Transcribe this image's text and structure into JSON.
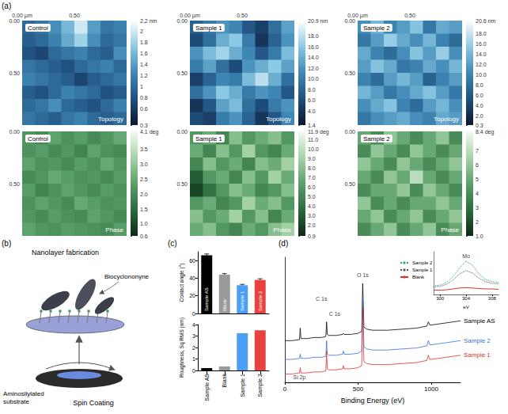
{
  "panel_labels": [
    "(a)",
    "(b)",
    "(c)",
    "(d)"
  ],
  "diagram": {
    "title": "Nanolayer fabrication",
    "molecule": "Biocyclononyne",
    "substrate": "Aminosilylated substrate",
    "process": "Spin Coating"
  },
  "chart_data": [
    {
      "type": "heatmap",
      "title": "Control",
      "subtitle": "Topology",
      "xlim": [
        0,
        1
      ],
      "ylim": [
        0,
        1
      ],
      "xticks": [
        {
          "value": 0,
          "label": "0.00 µm"
        },
        {
          "value": 0.5,
          "label": "0.50"
        }
      ],
      "yticks": [
        {
          "value": 0,
          "label": "0.00"
        },
        {
          "value": 0.5,
          "label": "0.50"
        }
      ],
      "cells": [
        [
          1.0,
          1.1,
          1.3,
          1.6,
          2.0,
          1.4,
          1.1,
          1.2
        ],
        [
          0.9,
          1.0,
          1.2,
          1.5,
          1.8,
          1.3,
          1.0,
          1.1
        ],
        [
          0.8,
          0.7,
          1.0,
          1.1,
          1.2,
          1.0,
          0.9,
          1.3
        ],
        [
          1.1,
          1.0,
          0.9,
          0.8,
          1.0,
          1.1,
          1.2,
          1.0
        ],
        [
          1.2,
          1.1,
          1.0,
          0.9,
          0.7,
          0.9,
          1.0,
          1.1
        ],
        [
          0.9,
          0.8,
          1.0,
          1.2,
          1.1,
          1.0,
          0.8,
          0.9
        ],
        [
          1.0,
          1.1,
          1.3,
          1.0,
          0.9,
          0.8,
          1.0,
          1.2
        ],
        [
          1.1,
          1.0,
          0.9,
          1.1,
          1.2,
          1.0,
          0.9,
          1.0
        ]
      ],
      "colorbar": {
        "range": [
          0.3,
          2.2
        ],
        "ticks": [
          {
            "value": 2.2,
            "label": "2.2 nm"
          },
          2,
          1.8,
          1.6,
          1.4,
          1.2,
          1,
          0.8,
          0.6,
          0.3
        ]
      }
    },
    {
      "type": "heatmap",
      "title": "Sample 1",
      "subtitle": "Topology",
      "xlim": [
        0,
        1
      ],
      "ylim": [
        0,
        1
      ],
      "xticks": [
        {
          "value": 0,
          "label": "0.00 µm"
        },
        {
          "value": 0.5,
          "label": "0.50"
        }
      ],
      "yticks": [
        {
          "value": 0,
          "label": "0.00"
        },
        {
          "value": 0.5,
          "label": "0.50"
        }
      ],
      "cells": [
        [
          8,
          10,
          12,
          11,
          7,
          5,
          9,
          13
        ],
        [
          6,
          9,
          14,
          16,
          10,
          4,
          8,
          12
        ],
        [
          12,
          15,
          17,
          14,
          11,
          7,
          10,
          15
        ],
        [
          10,
          13,
          9,
          6,
          12,
          14,
          16,
          13
        ],
        [
          5,
          8,
          11,
          10,
          15,
          18,
          14,
          9
        ],
        [
          9,
          12,
          16,
          14,
          10,
          12,
          11,
          7
        ],
        [
          4,
          7,
          13,
          15,
          9,
          6,
          10,
          12
        ],
        [
          6,
          5,
          10,
          12,
          8,
          4,
          7,
          11
        ]
      ],
      "colorbar": {
        "range": [
          1.4,
          20.9
        ],
        "ticks": [
          {
            "value": 20.9,
            "label": "20.9 nm"
          },
          {
            "value": 18,
            "label": "18.0"
          },
          {
            "value": 16,
            "label": "16.0"
          },
          {
            "value": 14,
            "label": "14.0"
          },
          {
            "value": 12,
            "label": "12.0"
          },
          {
            "value": 10,
            "label": "10.0"
          },
          {
            "value": 8,
            "label": "8.0"
          },
          {
            "value": 6,
            "label": "6.0"
          },
          {
            "value": 4,
            "label": "4.0"
          },
          1.4
        ]
      }
    },
    {
      "type": "heatmap",
      "title": "Sample 2",
      "subtitle": "Topology",
      "xlim": [
        0,
        1
      ],
      "ylim": [
        0,
        1
      ],
      "xticks": [
        {
          "value": 0,
          "label": "0.00 µm"
        },
        {
          "value": 0.5,
          "label": "0.50"
        }
      ],
      "yticks": [
        {
          "value": 0,
          "label": "0.00"
        },
        {
          "value": 0.5,
          "label": "0.50"
        }
      ],
      "cells": [
        [
          11,
          14,
          10,
          12,
          15,
          9,
          13,
          12
        ],
        [
          9,
          12,
          16,
          13,
          11,
          14,
          10,
          8
        ],
        [
          13,
          10,
          8,
          11,
          15,
          12,
          16,
          11
        ],
        [
          12,
          15,
          13,
          9,
          10,
          13,
          11,
          14
        ],
        [
          10,
          8,
          12,
          14,
          12,
          7,
          10,
          12
        ],
        [
          14,
          12,
          9,
          11,
          13,
          15,
          12,
          9
        ],
        [
          11,
          13,
          15,
          10,
          8,
          12,
          14,
          11
        ],
        [
          9,
          11,
          12,
          13,
          11,
          10,
          13,
          12
        ]
      ],
      "colorbar": {
        "range": [
          0.3,
          20.6
        ],
        "ticks": [
          {
            "value": 20.6,
            "label": "20.6 nm"
          },
          {
            "value": 18,
            "label": "18.0"
          },
          {
            "value": 16,
            "label": "16.0"
          },
          {
            "value": 14,
            "label": "14.0"
          },
          {
            "value": 12,
            "label": "12.0"
          },
          {
            "value": 10,
            "label": "10.0"
          },
          {
            "value": 8,
            "label": "8.0"
          },
          {
            "value": 6,
            "label": "6.0"
          },
          {
            "value": 4,
            "label": "4.0"
          },
          {
            "value": 2,
            "label": "2.0"
          },
          0.3
        ]
      }
    },
    {
      "type": "heatmap",
      "title": "Control",
      "subtitle": "Phase",
      "xlim": [
        0,
        1
      ],
      "ylim": [
        0,
        1
      ],
      "tick_labels": "y",
      "yticks": [
        {
          "value": 0,
          "label": "0.00"
        },
        {
          "value": 0.5,
          "label": "0.50"
        }
      ],
      "cells": [
        [
          2.2,
          2.0,
          2.4,
          2.1,
          2.3,
          2.0,
          2.2,
          2.5
        ],
        [
          2.1,
          2.3,
          2.0,
          2.2,
          1.9,
          2.4,
          2.1,
          2.0
        ],
        [
          2.4,
          2.1,
          2.2,
          2.0,
          2.3,
          2.1,
          2.5,
          2.2
        ],
        [
          2.0,
          2.2,
          2.5,
          2.3,
          2.1,
          2.2,
          2.0,
          2.3
        ],
        [
          2.3,
          1.9,
          2.1,
          2.4,
          2.2,
          2.0,
          2.3,
          2.1
        ],
        [
          2.1,
          2.4,
          2.2,
          2.0,
          2.5,
          2.3,
          2.1,
          2.2
        ],
        [
          2.2,
          2.0,
          2.3,
          2.1,
          2.0,
          2.4,
          2.2,
          2.0
        ],
        [
          2.4,
          2.2,
          2.1,
          2.3,
          2.2,
          2.1,
          2.0,
          2.3
        ]
      ],
      "colorbar": {
        "range": [
          0.6,
          4.1
        ],
        "ticks": [
          {
            "value": 4.1,
            "label": "4.1 deg"
          },
          3.5,
          {
            "value": 3,
            "label": "3.0"
          },
          2.5,
          {
            "value": 2,
            "label": "2.0"
          },
          1.5,
          {
            "value": 1,
            "label": "1.0"
          },
          0.6
        ]
      }
    },
    {
      "type": "heatmap",
      "title": "Sample 1",
      "subtitle": "Phase",
      "xlim": [
        0,
        1
      ],
      "ylim": [
        0,
        1
      ],
      "tick_labels": "y",
      "yticks": [
        {
          "value": 0,
          "label": "0.00"
        },
        {
          "value": 0.5,
          "label": "0.50"
        }
      ],
      "cells": [
        [
          6,
          7,
          5,
          8,
          6,
          7,
          8,
          6
        ],
        [
          7,
          5,
          8,
          6,
          9,
          6,
          5,
          7
        ],
        [
          5,
          8,
          6,
          7,
          5,
          8,
          7,
          9
        ],
        [
          3,
          6,
          7,
          5,
          8,
          6,
          9,
          7
        ],
        [
          2,
          4,
          6,
          8,
          7,
          5,
          6,
          8
        ],
        [
          6,
          7,
          5,
          6,
          9,
          7,
          8,
          6
        ],
        [
          8,
          6,
          7,
          9,
          6,
          8,
          5,
          7
        ],
        [
          7,
          8,
          6,
          5,
          7,
          6,
          8,
          9
        ]
      ],
      "colorbar": {
        "range": [
          0.9,
          11.9
        ],
        "ticks": [
          {
            "value": 11.9,
            "label": "11.9 deg"
          },
          {
            "value": 11,
            "label": "11.0"
          },
          {
            "value": 10,
            "label": "10.0"
          },
          {
            "value": 9,
            "label": "9.0"
          },
          {
            "value": 8,
            "label": "8.0"
          },
          {
            "value": 7,
            "label": "7.0"
          },
          {
            "value": 6,
            "label": "6.0"
          },
          {
            "value": 5,
            "label": "5.0"
          },
          {
            "value": 4,
            "label": "4.0"
          },
          {
            "value": 3,
            "label": "3.0"
          },
          {
            "value": 2,
            "label": "2.0"
          },
          0.9
        ]
      }
    },
    {
      "type": "heatmap",
      "title": "Sample 2",
      "subtitle": "Phase",
      "xlim": [
        0,
        1
      ],
      "ylim": [
        0,
        1
      ],
      "tick_labels": "y",
      "yticks": [
        {
          "value": 0,
          "label": "0.00"
        },
        {
          "value": 0.5,
          "label": "0.50"
        }
      ],
      "cells": [
        [
          5,
          4,
          6,
          5,
          4,
          5,
          6,
          4
        ],
        [
          4,
          6,
          5,
          4,
          6,
          5,
          4,
          5
        ],
        [
          6,
          5,
          4,
          6,
          5,
          4,
          5,
          6
        ],
        [
          5,
          4,
          6,
          5,
          7,
          5,
          4,
          5
        ],
        [
          4,
          5,
          5,
          6,
          4,
          6,
          5,
          4
        ],
        [
          6,
          4,
          5,
          4,
          5,
          5,
          6,
          5
        ],
        [
          5,
          6,
          4,
          5,
          6,
          4,
          5,
          6
        ],
        [
          4,
          5,
          6,
          4,
          5,
          6,
          4,
          5
        ]
      ],
      "colorbar": {
        "range": [
          1.0,
          8.4
        ],
        "ticks": [
          {
            "value": 8.4,
            "label": "8.4 deg"
          },
          7,
          6,
          5,
          4,
          3,
          2,
          {
            "value": 1,
            "label": "1.0"
          }
        ]
      }
    },
    {
      "type": "bar",
      "ylabel": "Contact angle (°)",
      "tick_labels": "y",
      "categories": [
        "Sample AS",
        "Blank",
        "Sample 1",
        "Sample 2"
      ],
      "values": [
        66,
        44,
        32,
        38
      ],
      "errors": [
        1.5,
        1.2,
        1.0,
        1.4
      ],
      "colors": [
        "#000000",
        "#9a9a9a",
        "#4a9ff5",
        "#e8423f"
      ],
      "ylim": [
        0,
        70
      ],
      "yticks": [
        0,
        20,
        40,
        60
      ]
    },
    {
      "type": "bar",
      "ylabel": "Roughness, Sq RMS (nm)",
      "categories": [
        "Sample AS",
        "Blank",
        "Sample 1",
        "Sample 2"
      ],
      "values": [
        0.2,
        0.35,
        3.25,
        3.5
      ],
      "colors": [
        "#000000",
        "#9a9a9a",
        "#4a9ff5",
        "#e8423f"
      ],
      "ylim": [
        0,
        4
      ],
      "yticks": [
        0,
        1,
        2,
        3,
        4
      ]
    },
    {
      "type": "line",
      "xlabel": "Binding Energy (eV)",
      "tick_labels": "x",
      "x": [
        0,
        50,
        100,
        105,
        110,
        150,
        200,
        250,
        280,
        285,
        290,
        300,
        350,
        395,
        400,
        405,
        450,
        500,
        525,
        532,
        540,
        560,
        600,
        700,
        800,
        900,
        970,
        980,
        990,
        1000,
        1050,
        1100,
        1150,
        1200
      ],
      "xlim": [
        0,
        1200
      ],
      "xticks": [
        0,
        500,
        1000
      ],
      "ylim": [
        0,
        120
      ],
      "series": [
        {
          "name": "Sample AS",
          "color": "#000000",
          "values": [
            40,
            40,
            41,
            52,
            42,
            42,
            43,
            43,
            44,
            58,
            46,
            45,
            45,
            46,
            47,
            46,
            46,
            47,
            49,
            95,
            53,
            51,
            50,
            50,
            51,
            52,
            54,
            58,
            55,
            55,
            56,
            57,
            58,
            59
          ]
        },
        {
          "name": "Sample 2",
          "color": "#3b6fd4",
          "values": [
            22,
            22,
            23,
            27,
            23,
            23,
            24,
            24,
            25,
            40,
            27,
            26,
            26,
            27,
            30,
            27,
            27,
            28,
            30,
            82,
            34,
            32,
            31,
            31,
            32,
            33,
            35,
            40,
            36,
            36,
            37,
            38,
            39,
            40
          ]
        },
        {
          "name": "Sample 1",
          "color": "#d9342b",
          "values": [
            8,
            8,
            9,
            14,
            9,
            9,
            10,
            10,
            11,
            30,
            13,
            12,
            12,
            13,
            16,
            13,
            13,
            14,
            16,
            72,
            20,
            18,
            17,
            17,
            18,
            19,
            21,
            26,
            22,
            22,
            23,
            24,
            25,
            26
          ]
        }
      ],
      "annotations": [
        {
          "text": "Si 2p",
          "x": 100,
          "y": 5
        },
        {
          "text": "C 1s",
          "x": 250,
          "y": 80
        },
        {
          "text": "C 1s",
          "x": 340,
          "y": 66
        },
        {
          "text": "O 1s",
          "x": 532,
          "y": 103
        }
      ]
    },
    {
      "type": "line",
      "xlabel": "eV",
      "tick_labels": "x",
      "legend": "left",
      "x": [
        299,
        300,
        301,
        302,
        303,
        304,
        305,
        306,
        307,
        308,
        309
      ],
      "xlim": [
        299,
        309
      ],
      "xticks": [
        300,
        304,
        308
      ],
      "ylim": [
        0,
        100
      ],
      "series": [
        {
          "name": "Sample 2",
          "color": "#2e9e8a",
          "line_style": "dotted",
          "values": [
            20,
            22,
            28,
            42,
            62,
            78,
            68,
            48,
            35,
            30,
            28
          ]
        },
        {
          "name": "Sample 1",
          "color": "#555555",
          "line_style": "dotted",
          "values": [
            18,
            19,
            24,
            34,
            48,
            56,
            50,
            38,
            30,
            26,
            25
          ]
        },
        {
          "name": "Blank",
          "color": "#d9342b",
          "line_style": "solid",
          "values": [
            10,
            10,
            11,
            13,
            15,
            16,
            15,
            14,
            13,
            13,
            12
          ]
        }
      ],
      "annotations": [
        {
          "text": "Mo",
          "x": 304,
          "y": 90
        }
      ]
    }
  ]
}
